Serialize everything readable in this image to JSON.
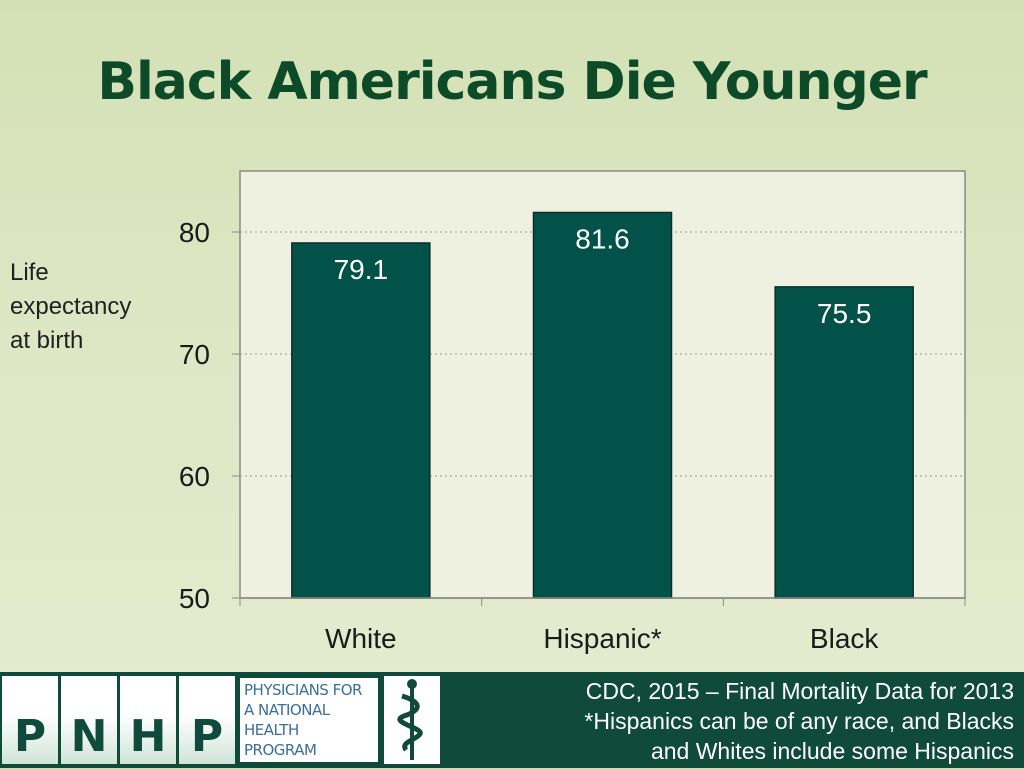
{
  "title": "Black Americans Die Younger",
  "chart_data": {
    "type": "bar",
    "title": "Black Americans Die Younger",
    "ylabel": "Life expectancy at birth",
    "xlabel": "",
    "categories": [
      "White",
      "Hispanic*",
      "Black"
    ],
    "values": [
      79.1,
      81.6,
      75.5
    ],
    "data_labels": [
      "79.1",
      "81.6",
      "75.5"
    ],
    "ylim": [
      50,
      85
    ],
    "yticks": [
      "50",
      "60",
      "70",
      "80"
    ],
    "grid": true,
    "bar_color": "#03524a",
    "plot_background": "#eef0e0"
  },
  "ylabel_lines": [
    "Life",
    "expectancy",
    "at birth"
  ],
  "footer": {
    "logo_letters": [
      "P",
      "N",
      "H",
      "P"
    ],
    "logo_lines": [
      "PHYSICIANS FOR",
      "A NATIONAL",
      "HEALTH",
      "PROGRAM"
    ],
    "source_lines": [
      "CDC, 2015 – Final Mortality Data for 2013",
      "*Hispanics can be of any race, and Blacks",
      "and Whites include some Hispanics"
    ]
  },
  "colors": {
    "title": "#0c4a28",
    "footer": "#0f4a3b",
    "logo_text": "#3a6f9a"
  }
}
